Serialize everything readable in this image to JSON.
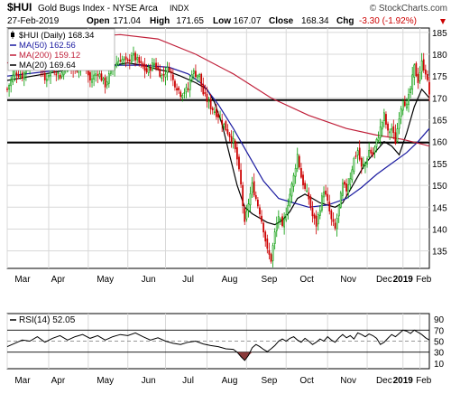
{
  "chart_data": [
    {
      "type": "candlestick",
      "title": "$HUI Gold Bugs Index - NYSE Arca INDX",
      "symbol": "$HUI",
      "name": "Gold Bugs Index - NYSE Arca",
      "exchange": "INDX",
      "watermark": "© StockCharts.com",
      "date_label": "27-Feb-2019",
      "quote": {
        "open_label": "Open",
        "open": "171.04",
        "high_label": "High",
        "high": "171.65",
        "low_label": "Low",
        "low": "167.07",
        "close_label": "Close",
        "close": "168.34",
        "chg_label": "Chg",
        "chg": "-3.30 (-1.92%)",
        "chg_color": "#cc0000",
        "chg_arrow": "down"
      },
      "legend": [
        {
          "label": "$HUI (Daily) 168.34",
          "color": "#000000",
          "icon": "candle"
        },
        {
          "label": "MA(50) 162.56",
          "color": "#1a1aa0",
          "icon": "line"
        },
        {
          "label": "MA(200) 159.12",
          "color": "#c0203a",
          "icon": "line"
        },
        {
          "label": "MA(20) 169.64",
          "color": "#000000",
          "icon": "line"
        }
      ],
      "ylim": [
        131,
        186
      ],
      "y_ticks": [
        135,
        140,
        145,
        150,
        155,
        160,
        165,
        170,
        175,
        180,
        185
      ],
      "x_tick_labels": [
        "Mar",
        "Apr",
        "May",
        "Jun",
        "Jul",
        "Aug",
        "Sep",
        "Oct",
        "Nov",
        "Dec",
        "2019",
        "Feb"
      ],
      "bold_tick_labels": [
        "2019"
      ],
      "horizontal_lines": [
        169.5,
        159.8
      ],
      "up_color": "#009900",
      "down_color": "#cc0000",
      "grid": true,
      "close_path": [
        [
          0,
          172
        ],
        [
          4,
          176
        ],
        [
          8,
          175
        ],
        [
          12,
          178
        ],
        [
          16,
          180
        ],
        [
          20,
          174
        ],
        [
          24,
          177
        ],
        [
          28,
          175
        ],
        [
          32,
          178
        ],
        [
          36,
          176
        ],
        [
          40,
          179
        ],
        [
          44,
          174
        ],
        [
          48,
          176
        ],
        [
          52,
          173
        ],
        [
          56,
          177
        ],
        [
          60,
          179
        ],
        [
          64,
          178
        ],
        [
          66,
          180
        ],
        [
          70,
          178
        ],
        [
          74,
          176
        ],
        [
          78,
          178
        ],
        [
          82,
          175
        ],
        [
          86,
          177
        ],
        [
          88,
          174
        ],
        [
          92,
          171
        ],
        [
          96,
          172
        ],
        [
          98,
          176
        ],
        [
          102,
          175
        ],
        [
          104,
          171
        ],
        [
          108,
          168
        ],
        [
          112,
          166
        ],
        [
          116,
          163
        ],
        [
          120,
          160
        ],
        [
          122,
          156
        ],
        [
          124,
          150
        ],
        [
          126,
          141
        ],
        [
          128,
          146
        ],
        [
          130,
          150
        ],
        [
          132,
          147
        ],
        [
          134,
          144
        ],
        [
          136,
          140
        ],
        [
          138,
          135
        ],
        [
          140,
          133
        ],
        [
          142,
          139
        ],
        [
          144,
          143
        ],
        [
          146,
          140
        ],
        [
          148,
          144
        ],
        [
          150,
          148
        ],
        [
          152,
          152
        ],
        [
          154,
          157
        ],
        [
          156,
          152
        ],
        [
          158,
          149
        ],
        [
          160,
          147
        ],
        [
          162,
          143
        ],
        [
          164,
          141
        ],
        [
          166,
          145
        ],
        [
          168,
          149
        ],
        [
          170,
          146
        ],
        [
          172,
          142
        ],
        [
          174,
          140
        ],
        [
          176,
          145
        ],
        [
          178,
          150
        ],
        [
          180,
          149
        ],
        [
          182,
          152
        ],
        [
          184,
          156
        ],
        [
          186,
          158
        ],
        [
          188,
          154
        ],
        [
          190,
          155
        ],
        [
          192,
          158
        ],
        [
          194,
          157
        ],
        [
          196,
          160
        ],
        [
          198,
          163
        ],
        [
          200,
          166
        ],
        [
          202,
          162
        ],
        [
          204,
          163
        ],
        [
          206,
          160
        ],
        [
          208,
          166
        ],
        [
          210,
          170
        ],
        [
          212,
          168
        ],
        [
          214,
          172
        ],
        [
          216,
          177
        ],
        [
          218,
          174
        ],
        [
          220,
          178
        ],
        [
          222,
          176
        ],
        [
          224,
          171
        ]
      ],
      "series": [
        {
          "name": "MA(20)",
          "color": "#000000",
          "points": [
            [
              0,
              174
            ],
            [
              20,
              175.5
            ],
            [
              40,
              177
            ],
            [
              56,
              177.5
            ],
            [
              64,
              178
            ],
            [
              72,
              177.5
            ],
            [
              80,
              176.5
            ],
            [
              86,
              176
            ],
            [
              92,
              175
            ],
            [
              100,
              173.5
            ],
            [
              106,
              172
            ],
            [
              110,
              169
            ],
            [
              114,
              164
            ],
            [
              118,
              157
            ],
            [
              122,
              150
            ],
            [
              126,
              145
            ],
            [
              130,
              143.5
            ],
            [
              134,
              142.5
            ],
            [
              138,
              141.5
            ],
            [
              142,
              141
            ],
            [
              146,
              142
            ],
            [
              150,
              144
            ],
            [
              154,
              147
            ],
            [
              158,
              148
            ],
            [
              162,
              147
            ],
            [
              166,
              146
            ],
            [
              170,
              145.5
            ],
            [
              174,
              145
            ],
            [
              178,
              146
            ],
            [
              182,
              149
            ],
            [
              186,
              152
            ],
            [
              190,
              155
            ],
            [
              194,
              157
            ],
            [
              198,
              159
            ],
            [
              200,
              160
            ],
            [
              204,
              159
            ],
            [
              208,
              157
            ],
            [
              212,
              162
            ],
            [
              216,
              168
            ],
            [
              220,
              172
            ],
            [
              224,
              170
            ]
          ]
        },
        {
          "name": "MA(50)",
          "color": "#1a1aa0",
          "points": [
            [
              0,
              175
            ],
            [
              20,
              176
            ],
            [
              40,
              177
            ],
            [
              60,
              177.5
            ],
            [
              72,
              177.5
            ],
            [
              86,
              177
            ],
            [
              96,
              175.5
            ],
            [
              104,
              173
            ],
            [
              112,
              168.5
            ],
            [
              120,
              163
            ],
            [
              128,
              157
            ],
            [
              136,
              151
            ],
            [
              144,
              147
            ],
            [
              152,
              146
            ],
            [
              160,
              145
            ],
            [
              170,
              145.5
            ],
            [
              180,
              147
            ],
            [
              188,
              149.5
            ],
            [
              196,
              152.5
            ],
            [
              204,
              155
            ],
            [
              212,
              157.5
            ],
            [
              218,
              160
            ],
            [
              224,
              163
            ]
          ]
        },
        {
          "name": "MA(200)",
          "color": "#c0203a",
          "points": [
            [
              0,
              178
            ],
            [
              40,
              184
            ],
            [
              60,
              184.5
            ],
            [
              80,
              183.5
            ],
            [
              100,
              180
            ],
            [
              120,
              175.5
            ],
            [
              140,
              170
            ],
            [
              160,
              166
            ],
            [
              180,
              163
            ],
            [
              196,
              161.5
            ],
            [
              210,
              160.5
            ],
            [
              224,
              159
            ]
          ]
        }
      ]
    },
    {
      "type": "line",
      "title": "RSI(14) 52.05",
      "legend": [
        {
          "label": "RSI(14) 52.05",
          "color": "#000000"
        }
      ],
      "ylim": [
        0,
        100
      ],
      "y_ticks": [
        10,
        30,
        50,
        70,
        90
      ],
      "reference_lines": [
        70,
        50,
        30
      ],
      "x_tick_labels": [
        "Mar",
        "Apr",
        "May",
        "Jun",
        "Jul",
        "Aug",
        "Sep",
        "Oct",
        "Nov",
        "Dec",
        "2019",
        "Feb"
      ],
      "bold_tick_labels": [
        "2019"
      ],
      "line_color": "#000000",
      "overbought_fill": "#3a9a3a",
      "oversold_fill": "#8a3a3a",
      "values": [
        [
          0,
          40
        ],
        [
          4,
          46
        ],
        [
          8,
          52
        ],
        [
          12,
          50
        ],
        [
          16,
          58
        ],
        [
          20,
          48
        ],
        [
          24,
          55
        ],
        [
          28,
          60
        ],
        [
          32,
          52
        ],
        [
          36,
          58
        ],
        [
          40,
          62
        ],
        [
          44,
          55
        ],
        [
          48,
          60
        ],
        [
          52,
          52
        ],
        [
          56,
          58
        ],
        [
          60,
          62
        ],
        [
          64,
          60
        ],
        [
          68,
          65
        ],
        [
          72,
          58
        ],
        [
          76,
          52
        ],
        [
          80,
          56
        ],
        [
          84,
          50
        ],
        [
          88,
          46
        ],
        [
          92,
          44
        ],
        [
          96,
          48
        ],
        [
          100,
          50
        ],
        [
          104,
          45
        ],
        [
          108,
          42
        ],
        [
          112,
          40
        ],
        [
          116,
          36
        ],
        [
          120,
          35
        ],
        [
          122,
          30
        ],
        [
          124,
          22
        ],
        [
          126,
          15
        ],
        [
          128,
          24
        ],
        [
          130,
          38
        ],
        [
          132,
          44
        ],
        [
          134,
          40
        ],
        [
          136,
          35
        ],
        [
          138,
          31
        ],
        [
          140,
          36
        ],
        [
          142,
          42
        ],
        [
          144,
          50
        ],
        [
          146,
          54
        ],
        [
          148,
          50
        ],
        [
          150,
          55
        ],
        [
          152,
          58
        ],
        [
          154,
          52
        ],
        [
          156,
          48
        ],
        [
          158,
          55
        ],
        [
          160,
          50
        ],
        [
          162,
          44
        ],
        [
          164,
          48
        ],
        [
          166,
          54
        ],
        [
          168,
          50
        ],
        [
          170,
          58
        ],
        [
          172,
          52
        ],
        [
          174,
          48
        ],
        [
          176,
          56
        ],
        [
          178,
          62
        ],
        [
          180,
          56
        ],
        [
          182,
          60
        ],
        [
          184,
          54
        ],
        [
          186,
          65
        ],
        [
          188,
          62
        ],
        [
          190,
          58
        ],
        [
          192,
          63
        ],
        [
          194,
          60
        ],
        [
          196,
          55
        ],
        [
          198,
          44
        ],
        [
          200,
          48
        ],
        [
          202,
          55
        ],
        [
          204,
          62
        ],
        [
          206,
          58
        ],
        [
          208,
          64
        ],
        [
          210,
          70
        ],
        [
          212,
          68
        ],
        [
          214,
          64
        ],
        [
          216,
          70
        ],
        [
          218,
          66
        ],
        [
          220,
          62
        ],
        [
          222,
          56
        ],
        [
          224,
          52
        ]
      ]
    }
  ]
}
